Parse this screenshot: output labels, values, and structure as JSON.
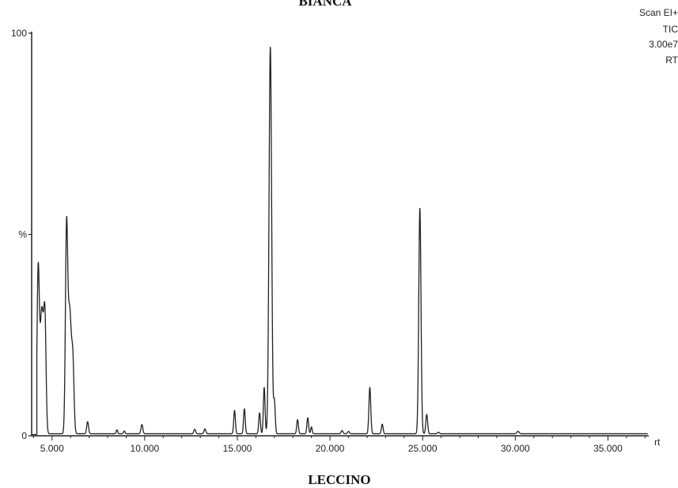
{
  "chart_data": {
    "type": "line",
    "title_top": "BIANCA",
    "title_bottom": "LECCINO",
    "annotations": [
      "Scan EI+",
      "TIC",
      "3.00e7",
      "RT"
    ],
    "xlabel": "rt",
    "ylabel": "%",
    "xlim": [
      3.9,
      37.2
    ],
    "ylim": [
      0,
      100
    ],
    "x_ticks": [
      5,
      10,
      15,
      20,
      25,
      30,
      35
    ],
    "x_tick_labels": [
      "5.000",
      "10.000",
      "15.000",
      "20.000",
      "25.000",
      "30.000",
      "35.000"
    ],
    "y_tick_labels": [
      "0",
      "%",
      "100"
    ],
    "y_tick_values": [
      0,
      50,
      100
    ],
    "baseline": 0.5,
    "peaks": [
      {
        "rt": 4.25,
        "height": 38.0,
        "width": 0.06
      },
      {
        "rt": 4.45,
        "height": 31.0,
        "width": 0.1
      },
      {
        "rt": 4.62,
        "height": 24.0,
        "width": 0.06
      },
      {
        "rt": 5.78,
        "height": 46.0,
        "width": 0.06
      },
      {
        "rt": 5.95,
        "height": 31.0,
        "width": 0.1
      },
      {
        "rt": 6.13,
        "height": 14.0,
        "width": 0.06
      },
      {
        "rt": 6.92,
        "height": 3.0,
        "width": 0.05
      },
      {
        "rt": 8.5,
        "height": 1.0,
        "width": 0.04
      },
      {
        "rt": 8.9,
        "height": 0.7,
        "width": 0.04
      },
      {
        "rt": 9.85,
        "height": 2.3,
        "width": 0.05
      },
      {
        "rt": 12.7,
        "height": 1.1,
        "width": 0.05
      },
      {
        "rt": 13.25,
        "height": 1.2,
        "width": 0.05
      },
      {
        "rt": 14.85,
        "height": 5.8,
        "width": 0.045
      },
      {
        "rt": 15.38,
        "height": 6.2,
        "width": 0.045
      },
      {
        "rt": 16.2,
        "height": 5.2,
        "width": 0.045
      },
      {
        "rt": 16.45,
        "height": 11.5,
        "width": 0.045
      },
      {
        "rt": 16.78,
        "height": 96.0,
        "width": 0.07
      },
      {
        "rt": 17.0,
        "height": 8.0,
        "width": 0.045
      },
      {
        "rt": 18.25,
        "height": 3.5,
        "width": 0.045
      },
      {
        "rt": 18.8,
        "height": 4.0,
        "width": 0.045
      },
      {
        "rt": 19.0,
        "height": 1.7,
        "width": 0.04
      },
      {
        "rt": 20.65,
        "height": 0.8,
        "width": 0.05
      },
      {
        "rt": 21.0,
        "height": 0.6,
        "width": 0.05
      },
      {
        "rt": 22.15,
        "height": 11.5,
        "width": 0.05
      },
      {
        "rt": 22.82,
        "height": 2.4,
        "width": 0.045
      },
      {
        "rt": 24.85,
        "height": 56.0,
        "width": 0.06
      },
      {
        "rt": 25.22,
        "height": 4.8,
        "width": 0.05
      },
      {
        "rt": 25.85,
        "height": 0.4,
        "width": 0.05
      },
      {
        "rt": 30.15,
        "height": 0.6,
        "width": 0.06
      }
    ],
    "rise_start": 4.18,
    "grid": false,
    "line_color": "#222222"
  }
}
